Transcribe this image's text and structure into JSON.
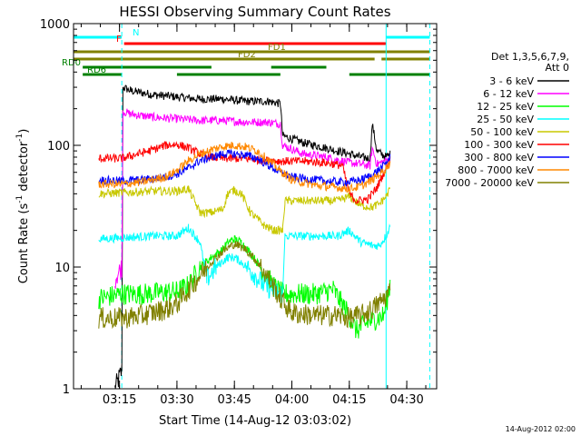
{
  "chart_data": {
    "type": "line",
    "title": "HESSI Observing Summary Count Rates",
    "xlabel": "Start Time (14-Aug-12 03:03:02)",
    "ylabel_main": "Count Rate (s",
    "ylabel_sup1": "-1",
    "ylabel_mid": " detector",
    "ylabel_sup2": "-1",
    "ylabel_end": ")",
    "ylog": true,
    "ylim": [
      1,
      1000
    ],
    "xlim_minutes": [
      3.05,
      4.63
    ],
    "y_ticks": [
      {
        "value": 1,
        "label": "1"
      },
      {
        "value": 10,
        "label": "10"
      },
      {
        "value": 100,
        "label": "100"
      },
      {
        "value": 1000,
        "label": "1000"
      }
    ],
    "x_ticks": [
      {
        "value": 3.25,
        "label": "03:15"
      },
      {
        "value": 3.5,
        "label": "03:30"
      },
      {
        "value": 3.75,
        "label": "03:45"
      },
      {
        "value": 4.0,
        "label": "04:00"
      },
      {
        "value": 4.25,
        "label": "04:15"
      },
      {
        "value": 4.5,
        "label": "04:30"
      }
    ],
    "legend_header": [
      "Det 1,3,5,6,7,9,",
      "Att 0"
    ],
    "legend_position": "right",
    "footer_date": "14-Aug-2012 02:00",
    "series": [
      {
        "name": "3 - 6 keV",
        "color": "#000000",
        "points": [
          [
            3.23,
            1.0
          ],
          [
            3.26,
            1.4
          ],
          [
            3.265,
            300
          ],
          [
            3.3,
            280
          ],
          [
            3.4,
            260
          ],
          [
            3.5,
            250
          ],
          [
            3.6,
            240
          ],
          [
            3.7,
            240
          ],
          [
            3.8,
            230
          ],
          [
            3.9,
            230
          ],
          [
            3.95,
            220
          ],
          [
            3.96,
            120
          ],
          [
            4.05,
            105
          ],
          [
            4.15,
            95
          ],
          [
            4.25,
            85
          ],
          [
            4.3,
            80
          ],
          [
            4.34,
            78
          ],
          [
            4.35,
            150
          ],
          [
            4.37,
            90
          ],
          [
            4.41,
            80
          ],
          [
            4.43,
            85
          ]
        ]
      },
      {
        "name": "6 - 12 keV",
        "color": "#ff00ff",
        "points": [
          [
            3.23,
            8
          ],
          [
            3.26,
            10
          ],
          [
            3.265,
            190
          ],
          [
            3.3,
            180
          ],
          [
            3.4,
            170
          ],
          [
            3.5,
            165
          ],
          [
            3.6,
            160
          ],
          [
            3.7,
            160
          ],
          [
            3.8,
            155
          ],
          [
            3.9,
            155
          ],
          [
            3.95,
            150
          ],
          [
            3.96,
            100
          ],
          [
            4.05,
            85
          ],
          [
            4.15,
            80
          ],
          [
            4.25,
            72
          ],
          [
            4.3,
            70
          ],
          [
            4.34,
            68
          ],
          [
            4.35,
            95
          ],
          [
            4.37,
            70
          ],
          [
            4.41,
            75
          ],
          [
            4.43,
            78
          ]
        ]
      },
      {
        "name": "12 - 25 keV",
        "color": "#00ff00",
        "points": [
          [
            3.16,
            5.5
          ],
          [
            3.26,
            6
          ],
          [
            3.35,
            6
          ],
          [
            3.45,
            6.2
          ],
          [
            3.5,
            6.3
          ],
          [
            3.55,
            7
          ],
          [
            3.6,
            10
          ],
          [
            3.65,
            12
          ],
          [
            3.7,
            14
          ],
          [
            3.72,
            16
          ],
          [
            3.75,
            17
          ],
          [
            3.78,
            16
          ],
          [
            3.82,
            13
          ],
          [
            3.88,
            9
          ],
          [
            3.92,
            7
          ],
          [
            3.96,
            6
          ],
          [
            4.1,
            6
          ],
          [
            4.18,
            6.5
          ],
          [
            4.25,
            4
          ],
          [
            4.28,
            3
          ],
          [
            4.33,
            3.5
          ],
          [
            4.4,
            4
          ],
          [
            4.42,
            6
          ],
          [
            4.43,
            8
          ]
        ]
      },
      {
        "name": "25 - 50 keV",
        "color": "#00ffff",
        "points": [
          [
            3.16,
            17
          ],
          [
            3.4,
            18
          ],
          [
            3.5,
            18
          ],
          [
            3.55,
            21
          ],
          [
            3.6,
            16
          ],
          [
            3.63,
            8
          ],
          [
            3.67,
            10
          ],
          [
            3.72,
            12
          ],
          [
            3.75,
            12
          ],
          [
            3.78,
            11
          ],
          [
            3.83,
            9
          ],
          [
            3.88,
            7
          ],
          [
            3.92,
            6.5
          ],
          [
            3.96,
            6
          ],
          [
            3.97,
            18
          ],
          [
            4.1,
            18
          ],
          [
            4.2,
            18
          ],
          [
            4.25,
            20
          ],
          [
            4.3,
            16
          ],
          [
            4.35,
            15
          ],
          [
            4.38,
            15
          ],
          [
            4.41,
            18
          ],
          [
            4.43,
            22
          ]
        ]
      },
      {
        "name": "50 - 100 keV",
        "color": "#c8c800",
        "points": [
          [
            3.16,
            40
          ],
          [
            3.4,
            42
          ],
          [
            3.5,
            42
          ],
          [
            3.55,
            44
          ],
          [
            3.6,
            28
          ],
          [
            3.65,
            28
          ],
          [
            3.7,
            30
          ],
          [
            3.72,
            40
          ],
          [
            3.75,
            43
          ],
          [
            3.78,
            40
          ],
          [
            3.82,
            28
          ],
          [
            3.88,
            22
          ],
          [
            3.92,
            20
          ],
          [
            3.96,
            20
          ],
          [
            3.97,
            35
          ],
          [
            4.1,
            35
          ],
          [
            4.2,
            35
          ],
          [
            4.25,
            38
          ],
          [
            4.3,
            32
          ],
          [
            4.35,
            31
          ],
          [
            4.38,
            33
          ],
          [
            4.41,
            38
          ],
          [
            4.43,
            45
          ]
        ]
      },
      {
        "name": "100 - 300 keV",
        "color": "#ff0000",
        "points": [
          [
            3.16,
            78
          ],
          [
            3.26,
            78
          ],
          [
            3.3,
            82
          ],
          [
            3.38,
            90
          ],
          [
            3.45,
            100
          ],
          [
            3.5,
            102
          ],
          [
            3.55,
            95
          ],
          [
            3.6,
            85
          ],
          [
            3.65,
            80
          ],
          [
            3.7,
            78
          ],
          [
            3.75,
            78
          ],
          [
            3.8,
            78
          ],
          [
            3.85,
            76
          ],
          [
            3.9,
            75
          ],
          [
            3.96,
            74
          ],
          [
            4.05,
            74
          ],
          [
            4.15,
            72
          ],
          [
            4.22,
            68
          ],
          [
            4.25,
            40
          ],
          [
            4.28,
            35
          ],
          [
            4.33,
            36
          ],
          [
            4.37,
            45
          ],
          [
            4.41,
            65
          ],
          [
            4.43,
            78
          ]
        ]
      },
      {
        "name": "300 - 800 keV",
        "color": "#0000ff",
        "points": [
          [
            3.16,
            52
          ],
          [
            3.26,
            51
          ],
          [
            3.35,
            52
          ],
          [
            3.45,
            55
          ],
          [
            3.5,
            58
          ],
          [
            3.55,
            65
          ],
          [
            3.6,
            75
          ],
          [
            3.65,
            80
          ],
          [
            3.7,
            85
          ],
          [
            3.75,
            85
          ],
          [
            3.8,
            83
          ],
          [
            3.85,
            78
          ],
          [
            3.9,
            68
          ],
          [
            3.95,
            60
          ],
          [
            4.0,
            55
          ],
          [
            4.1,
            52
          ],
          [
            4.2,
            50
          ],
          [
            4.25,
            50
          ],
          [
            4.3,
            52
          ],
          [
            4.35,
            57
          ],
          [
            4.4,
            68
          ],
          [
            4.43,
            80
          ]
        ]
      },
      {
        "name": "800 - 7000 keV",
        "color": "#ff8800",
        "points": [
          [
            3.16,
            48
          ],
          [
            3.26,
            48
          ],
          [
            3.35,
            50
          ],
          [
            3.45,
            55
          ],
          [
            3.5,
            62
          ],
          [
            3.55,
            75
          ],
          [
            3.6,
            85
          ],
          [
            3.65,
            92
          ],
          [
            3.7,
            98
          ],
          [
            3.75,
            100
          ],
          [
            3.8,
            97
          ],
          [
            3.85,
            90
          ],
          [
            3.9,
            75
          ],
          [
            3.95,
            62
          ],
          [
            4.0,
            52
          ],
          [
            4.1,
            47
          ],
          [
            4.2,
            45
          ],
          [
            4.25,
            44
          ],
          [
            4.3,
            46
          ],
          [
            4.35,
            52
          ],
          [
            4.4,
            62
          ],
          [
            4.43,
            72
          ]
        ]
      },
      {
        "name": "7000 - 20000 keV",
        "color": "#808000",
        "points": [
          [
            3.16,
            3.8
          ],
          [
            3.26,
            3.8
          ],
          [
            3.35,
            4
          ],
          [
            3.45,
            4.5
          ],
          [
            3.5,
            5
          ],
          [
            3.55,
            6.5
          ],
          [
            3.6,
            8.5
          ],
          [
            3.65,
            11
          ],
          [
            3.7,
            13.5
          ],
          [
            3.75,
            15.5
          ],
          [
            3.8,
            14
          ],
          [
            3.85,
            11
          ],
          [
            3.9,
            8
          ],
          [
            3.95,
            5.5
          ],
          [
            4.0,
            4.2
          ],
          [
            4.1,
            4
          ],
          [
            4.2,
            4
          ],
          [
            4.25,
            3.8
          ],
          [
            4.3,
            4
          ],
          [
            4.35,
            4.5
          ],
          [
            4.4,
            5.5
          ],
          [
            4.43,
            6.5
          ]
        ]
      }
    ],
    "flag_bars": [
      {
        "label": "N",
        "color": "#00ffff",
        "segments": [
          [
            3.05,
            3.26
          ],
          [
            4.41,
            4.6
          ]
        ]
      },
      {
        "label": "F",
        "color": "#ff0000",
        "segments": [
          [
            3.27,
            4.41
          ]
        ]
      },
      {
        "label": "FD1",
        "color": "#808000",
        "segments": [
          [
            3.05,
            4.6
          ]
        ]
      },
      {
        "label": "FD2",
        "color": "#808000",
        "segments": [
          [
            3.05,
            4.36
          ],
          [
            4.39,
            4.6
          ]
        ]
      },
      {
        "label": "RD0",
        "color": "#008000",
        "segments": [
          [
            3.09,
            3.65
          ],
          [
            3.91,
            4.15
          ]
        ]
      },
      {
        "label": "RD6",
        "color": "#008000",
        "segments": [
          [
            3.09,
            3.26
          ],
          [
            3.5,
            3.95
          ],
          [
            4.25,
            4.6
          ]
        ]
      }
    ],
    "vertical_markers": [
      {
        "value": 3.05,
        "color": "#00ffff",
        "style": "solid"
      },
      {
        "value": 3.26,
        "color": "#00ffff",
        "style": "dashed"
      },
      {
        "value": 4.41,
        "color": "#00ffff",
        "style": "solid"
      },
      {
        "value": 4.6,
        "color": "#00ffff",
        "style": "dashed"
      }
    ]
  }
}
